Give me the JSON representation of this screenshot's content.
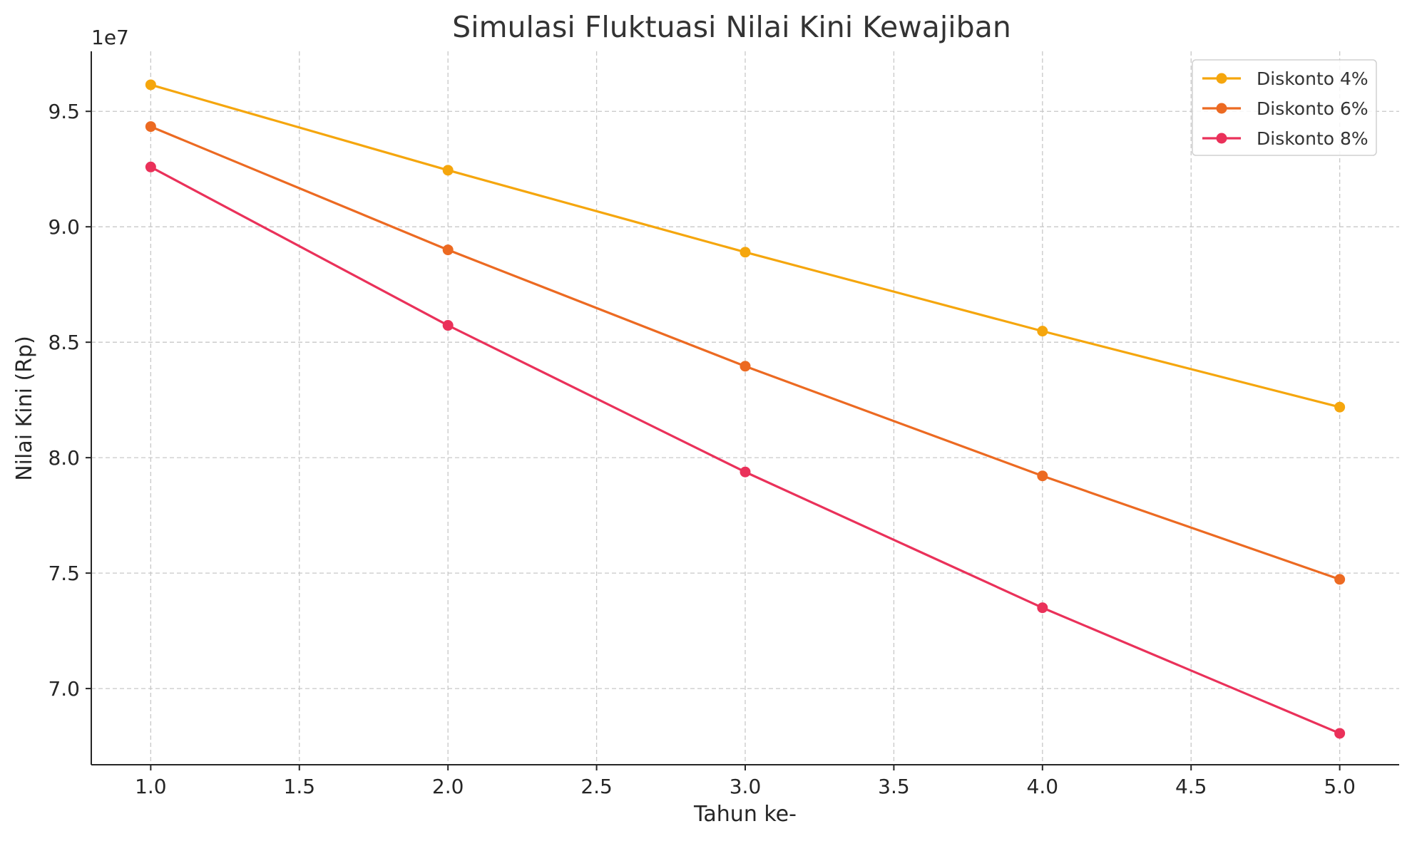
{
  "chart_data": {
    "type": "line",
    "title": "Simulasi Fluktuasi Nilai Kini Kewajiban",
    "xlabel": "Tahun ke-",
    "ylabel": "Nilai Kini (Rp)",
    "y_offset_text": "1e7",
    "x": [
      1,
      2,
      3,
      4,
      5
    ],
    "xlim": [
      0.8,
      5.2
    ],
    "ylim": [
      66700000,
      97600000
    ],
    "x_ticks": [
      1.0,
      1.5,
      2.0,
      2.5,
      3.0,
      3.5,
      4.0,
      4.5,
      5.0
    ],
    "x_tick_labels": [
      "1.0",
      "1.5",
      "2.0",
      "2.5",
      "3.0",
      "3.5",
      "4.0",
      "4.5",
      "5.0"
    ],
    "y_ticks": [
      70000000,
      75000000,
      80000000,
      85000000,
      90000000,
      95000000
    ],
    "y_tick_labels": [
      "7.0",
      "7.5",
      "8.0",
      "8.5",
      "9.0",
      "9.5"
    ],
    "grid": true,
    "legend_position": "top-right",
    "series": [
      {
        "name": "Diskonto 4%",
        "color": "#f5a60d",
        "values": [
          96150000,
          92450000,
          88900000,
          85480000,
          82190000
        ]
      },
      {
        "name": "Diskonto 6%",
        "color": "#ec6a22",
        "values": [
          94340000,
          89000000,
          83960000,
          79210000,
          74730000
        ]
      },
      {
        "name": "Diskonto 8%",
        "color": "#ea315a",
        "values": [
          92590000,
          85730000,
          79380000,
          73500000,
          68060000
        ]
      }
    ]
  }
}
